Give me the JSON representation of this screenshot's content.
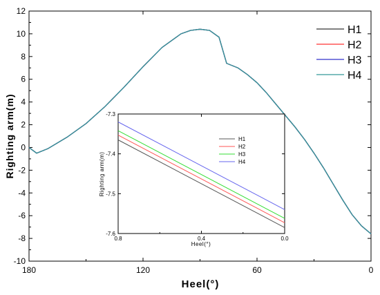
{
  "chart_data": [
    {
      "type": "line",
      "xlabel": "Heel(°)",
      "ylabel": "Righting arm(m)",
      "xlim": [
        180,
        0
      ],
      "ylim": [
        -10,
        12
      ],
      "x_reversed": true,
      "xticks": [
        180,
        120,
        60,
        0
      ],
      "yticks": [
        -10,
        -8,
        -6,
        -4,
        -2,
        0,
        2,
        4,
        6,
        8,
        10,
        12
      ],
      "legend_position": "top-right",
      "series": [
        {
          "name": "H1",
          "color": "#333333",
          "x": [
            180,
            176,
            170,
            160,
            150,
            140,
            130,
            120,
            110,
            100,
            95,
            90,
            85,
            80,
            76,
            70,
            65,
            60,
            55,
            50,
            45,
            40,
            35,
            30,
            25,
            20,
            15,
            10,
            5,
            0
          ],
          "y": [
            0,
            -0.5,
            -0.1,
            0.9,
            2.1,
            3.6,
            5.3,
            7.1,
            8.8,
            10.0,
            10.3,
            10.4,
            10.3,
            9.7,
            7.4,
            7.0,
            6.4,
            5.7,
            4.8,
            3.8,
            2.8,
            1.8,
            0.7,
            -0.5,
            -1.8,
            -3.2,
            -4.6,
            -5.9,
            -6.9,
            -7.6
          ]
        },
        {
          "name": "H2",
          "color": "#ff3333",
          "x": [
            180,
            176,
            170,
            160,
            150,
            140,
            130,
            120,
            110,
            100,
            95,
            90,
            85,
            80,
            76,
            70,
            65,
            60,
            55,
            50,
            45,
            40,
            35,
            30,
            25,
            20,
            15,
            10,
            5,
            0
          ],
          "y": [
            0,
            -0.5,
            -0.1,
            0.9,
            2.1,
            3.6,
            5.3,
            7.1,
            8.8,
            10.0,
            10.3,
            10.4,
            10.3,
            9.7,
            7.4,
            7.0,
            6.4,
            5.7,
            4.8,
            3.8,
            2.8,
            1.8,
            0.7,
            -0.5,
            -1.8,
            -3.2,
            -4.6,
            -5.9,
            -6.9,
            -7.6
          ]
        },
        {
          "name": "H3",
          "color": "#3333cc",
          "x": [
            180,
            176,
            170,
            160,
            150,
            140,
            130,
            120,
            110,
            100,
            95,
            90,
            85,
            80,
            76,
            70,
            65,
            60,
            55,
            50,
            45,
            40,
            35,
            30,
            25,
            20,
            15,
            10,
            5,
            0
          ],
          "y": [
            0,
            -0.5,
            -0.1,
            0.9,
            2.1,
            3.6,
            5.3,
            7.1,
            8.8,
            10.0,
            10.3,
            10.4,
            10.3,
            9.7,
            7.4,
            7.0,
            6.4,
            5.7,
            4.8,
            3.8,
            2.8,
            1.8,
            0.7,
            -0.5,
            -1.8,
            -3.2,
            -4.6,
            -5.9,
            -6.9,
            -7.6
          ]
        },
        {
          "name": "H4",
          "color": "#339999",
          "x": [
            180,
            176,
            170,
            160,
            150,
            140,
            130,
            120,
            110,
            100,
            95,
            90,
            85,
            80,
            76,
            70,
            65,
            60,
            55,
            50,
            45,
            40,
            35,
            30,
            25,
            20,
            15,
            10,
            5,
            0
          ],
          "y": [
            0,
            -0.5,
            -0.1,
            0.9,
            2.1,
            3.6,
            5.3,
            7.1,
            8.8,
            10.0,
            10.3,
            10.4,
            10.3,
            9.7,
            7.4,
            7.0,
            6.4,
            5.7,
            4.8,
            3.8,
            2.8,
            1.8,
            0.7,
            -0.5,
            -1.8,
            -3.2,
            -4.6,
            -5.9,
            -6.9,
            -7.6
          ]
        }
      ]
    },
    {
      "type": "line",
      "xlabel": "Heel(°)",
      "ylabel": "Righting arm(m)",
      "xlim": [
        0.8,
        0.0
      ],
      "ylim": [
        -7.6,
        -7.3
      ],
      "x_reversed": true,
      "xticks": [
        0.8,
        0.4,
        0.0
      ],
      "xtick_labels": [
        "0.8",
        "0.4",
        "0.0"
      ],
      "yticks": [
        -7.6,
        -7.5,
        -7.4,
        -7.3
      ],
      "ytick_labels": [
        "-7.6",
        "-7.5",
        "-7.4",
        "-7.3"
      ],
      "legend_position": "top-right",
      "series": [
        {
          "name": "H1",
          "color": "#555555",
          "x": [
            0.8,
            0.0
          ],
          "y": [
            -7.365,
            -7.585
          ]
        },
        {
          "name": "H2",
          "color": "#ff5555",
          "x": [
            0.8,
            0.0
          ],
          "y": [
            -7.353,
            -7.573
          ]
        },
        {
          "name": "H3",
          "color": "#33dd33",
          "x": [
            0.8,
            0.0
          ],
          "y": [
            -7.342,
            -7.562
          ]
        },
        {
          "name": "H4",
          "color": "#6666ee",
          "x": [
            0.8,
            0.0
          ],
          "y": [
            -7.32,
            -7.54
          ]
        }
      ]
    }
  ]
}
